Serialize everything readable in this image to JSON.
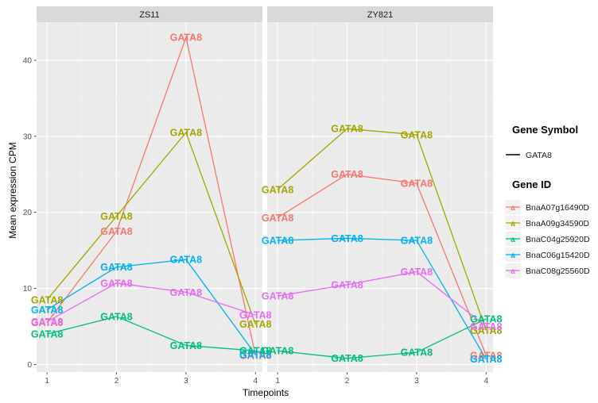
{
  "chart_data": {
    "type": "line",
    "facet_titles": [
      "ZS11",
      "ZY821"
    ],
    "xlabel": "Timepoints",
    "ylabel": "Mean expression CPM",
    "x": [
      1,
      2,
      3,
      4
    ],
    "x_ticks": [
      "1",
      "2",
      "3",
      "4"
    ],
    "y_ticks": [
      "0",
      "10",
      "20",
      "30",
      "40"
    ],
    "ylim": [
      -1,
      45
    ],
    "xlim": [
      0.85,
      4.1
    ],
    "point_label": "GATA8",
    "grid": true,
    "legend_position": "right",
    "legend": {
      "symbol_title": "Gene Symbol",
      "symbol_entry": "GATA8",
      "id_title": "Gene ID",
      "key_glyph": "a"
    },
    "series": [
      {
        "name": "BnaA07g16490D",
        "color": "#F8766D",
        "values": {
          "ZS11": [
            5.5,
            17.5,
            43,
            1.2
          ],
          "ZY821": [
            19.3,
            25,
            23.8,
            1.2
          ]
        }
      },
      {
        "name": "BnaA09g34590D",
        "color": "#A3A500",
        "values": {
          "ZS11": [
            8.5,
            19.5,
            30.5,
            5.3
          ],
          "ZY821": [
            23,
            31,
            30.2,
            4.5
          ]
        }
      },
      {
        "name": "BnaC04g25920D",
        "color": "#00BF7D",
        "values": {
          "ZS11": [
            4,
            6.3,
            2.5,
            1.8
          ],
          "ZY821": [
            1.8,
            0.8,
            1.6,
            6
          ]
        }
      },
      {
        "name": "BnaC06g15420D",
        "color": "#00B0F6",
        "values": {
          "ZS11": [
            7.2,
            12.8,
            13.8,
            1.3
          ],
          "ZY821": [
            16.3,
            16.6,
            16.3,
            0.7
          ]
        }
      },
      {
        "name": "BnaC08g25560D",
        "color": "#E76BF3",
        "values": {
          "ZS11": [
            5.6,
            10.7,
            9.5,
            6.5
          ],
          "ZY821": [
            9,
            10.5,
            12.2,
            5
          ]
        }
      }
    ]
  }
}
